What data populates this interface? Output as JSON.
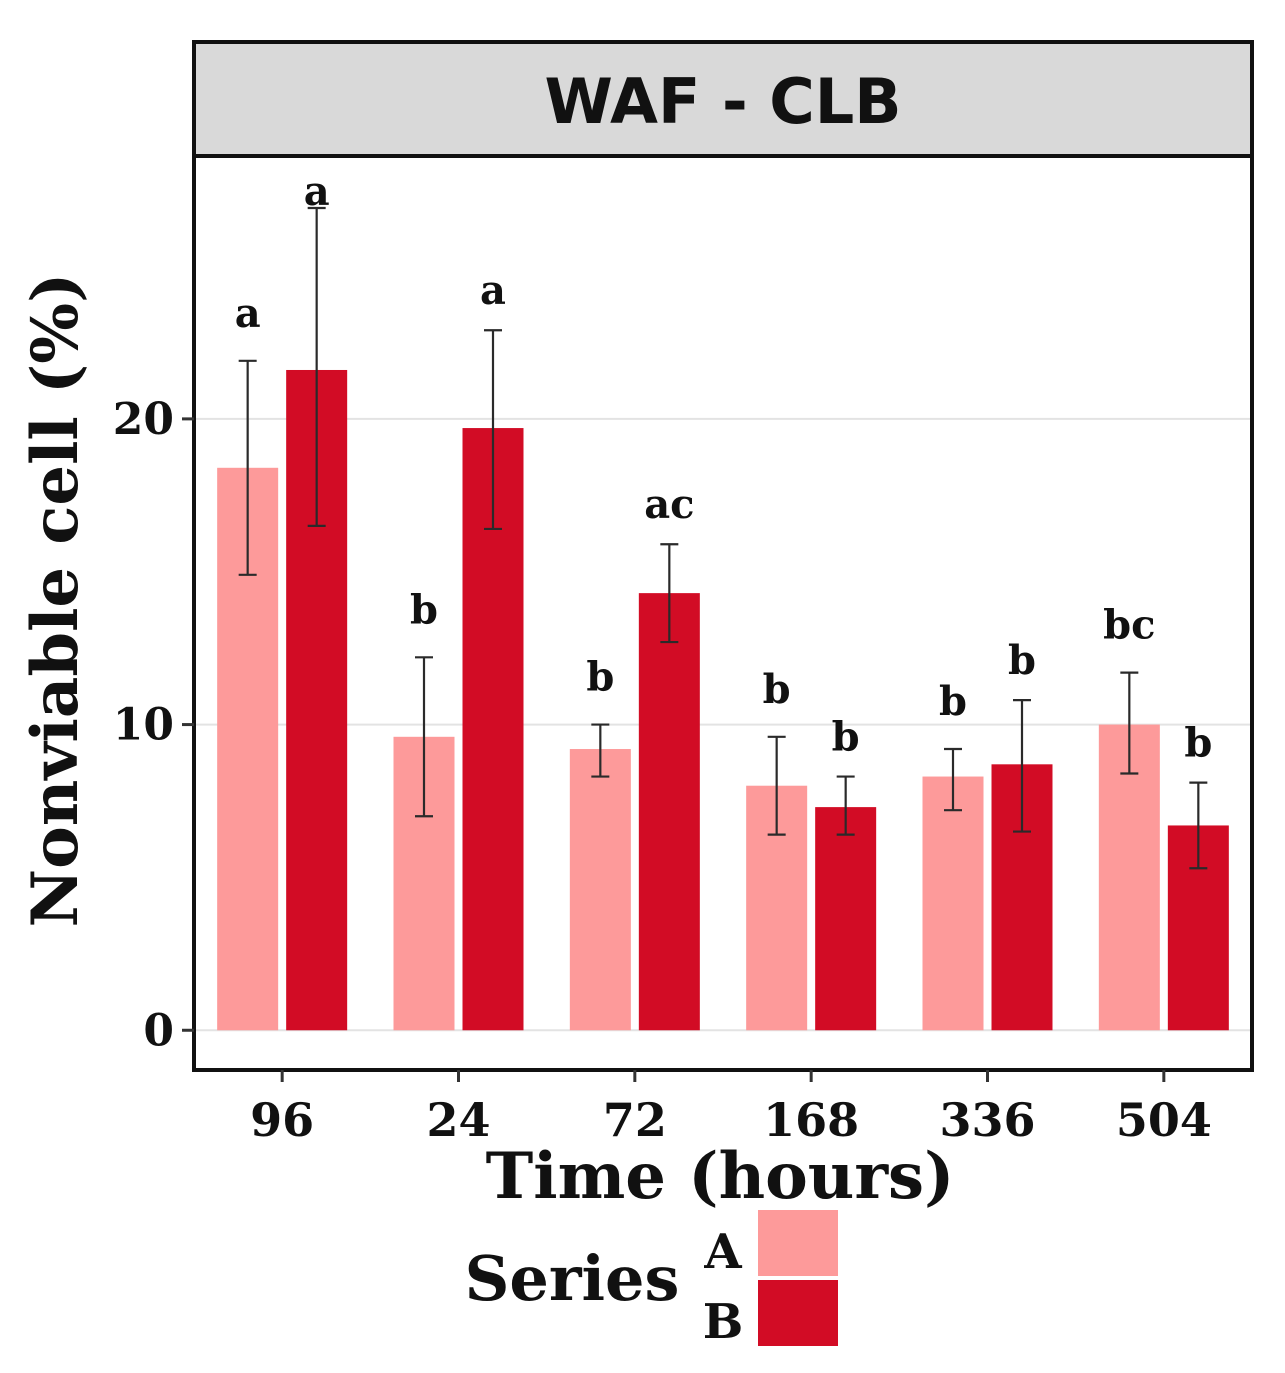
{
  "chart_data": {
    "type": "bar",
    "facet_title": "WAF - CLB",
    "xlabel": "Time (hours)",
    "ylabel": "Nonviable cell (%)",
    "ylim": [
      -1.3,
      28.6
    ],
    "y_ticks": [
      0,
      10,
      20
    ],
    "categories": [
      "96",
      "24",
      "72",
      "168",
      "336",
      "504"
    ],
    "series": [
      {
        "name": "A",
        "color": "#fd9a9a",
        "values": [
          18.4,
          9.6,
          9.2,
          8.0,
          8.3,
          10.0
        ],
        "error_low": [
          14.9,
          7.0,
          8.3,
          6.4,
          7.2,
          8.4
        ],
        "error_high": [
          21.9,
          12.2,
          10.0,
          9.6,
          9.2,
          11.7
        ],
        "significance": [
          "a",
          "b",
          "b",
          "b",
          "b",
          "bc"
        ]
      },
      {
        "name": "B",
        "color": "#d20c25",
        "values": [
          21.6,
          19.7,
          14.3,
          7.3,
          8.7,
          6.7
        ],
        "error_low": [
          16.5,
          16.4,
          12.7,
          6.4,
          6.5,
          5.3
        ],
        "error_high": [
          26.9,
          22.9,
          15.9,
          8.3,
          10.8,
          8.1
        ],
        "significance": [
          "a",
          "a",
          "ac",
          "b",
          "b",
          "b"
        ]
      }
    ],
    "legend": {
      "title": "Series",
      "position": "bottom"
    },
    "grid": true
  }
}
